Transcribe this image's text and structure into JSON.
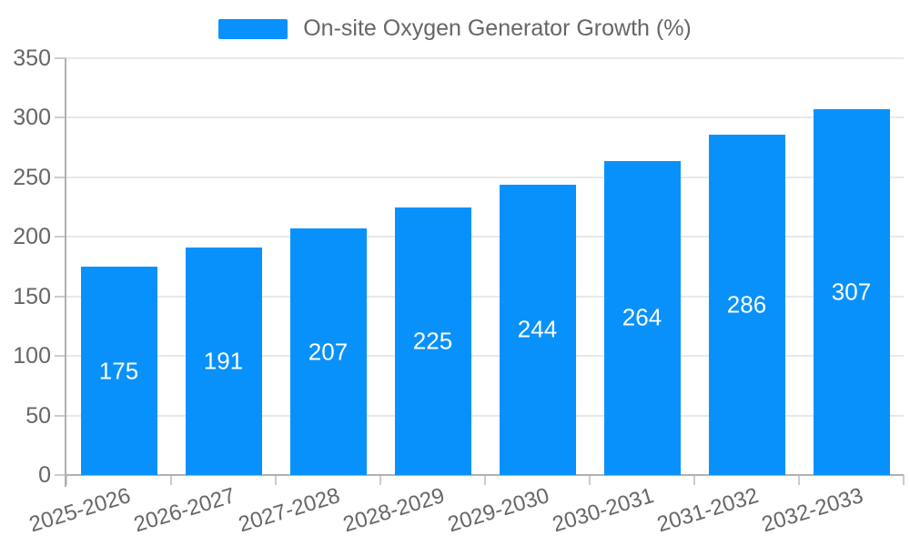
{
  "colors": {
    "bar": "#0991fb",
    "grid": "#e9e9e9",
    "axis": "#b0b0b0",
    "tick": "#cccccc",
    "text": "#666666",
    "bar_label": "#ffffff"
  },
  "chart_data": {
    "type": "bar",
    "title": "On-site Oxygen Generator Growth (%)",
    "legend": [
      "On-site Oxygen Generator Growth (%)"
    ],
    "legend_position": "top-center",
    "categories": [
      "2025-2026",
      "2026-2027",
      "2027-2028",
      "2028-2029",
      "2029-2030",
      "2030-2031",
      "2031-2032",
      "2032-2033"
    ],
    "values": [
      175,
      191,
      207,
      225,
      244,
      264,
      286,
      307
    ],
    "value_labels": "inside-center-white",
    "xlabel": "",
    "ylabel": "",
    "ylim": [
      0,
      350
    ],
    "y_ticks": [
      0,
      50,
      100,
      150,
      200,
      250,
      300,
      350
    ],
    "grid": true,
    "x_label_rotation_deg": -17
  }
}
